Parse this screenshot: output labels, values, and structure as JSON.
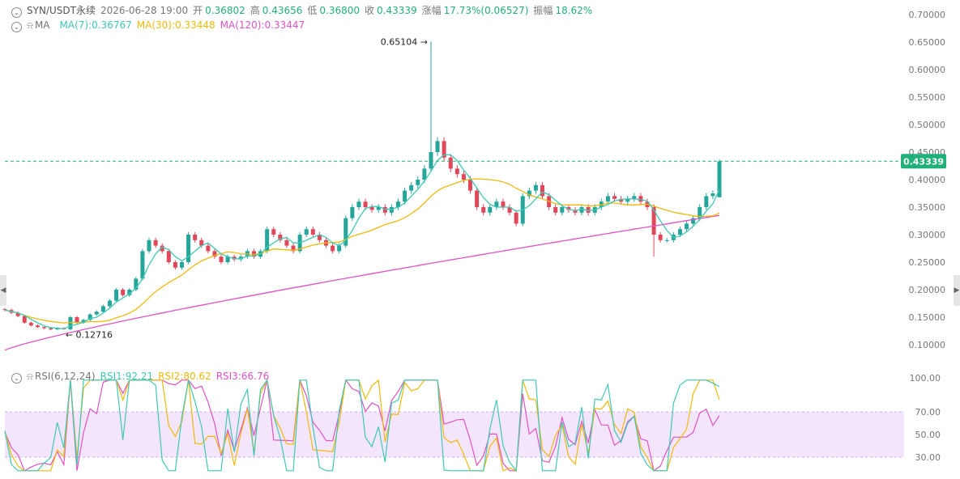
{
  "header": {
    "symbol": "SYN/USDT永续",
    "time": "2026-06-28 19:00",
    "open_label": "开",
    "open": "0.36802",
    "high_label": "高",
    "high": "0.43656",
    "low_label": "低",
    "low": "0.36800",
    "close_label": "收",
    "close": "0.43339",
    "change_label": "涨幅",
    "change": "17.73%(0.06527)",
    "amplitude_label": "振幅",
    "amplitude": "18.62%"
  },
  "ma_legend": {
    "title": "MA",
    "ma7": "MA(7):0.36767",
    "ma30": "MA(30):0.33448",
    "ma120": "MA(120):0.33447"
  },
  "rsi_legend": {
    "title": "RSI(6,12,24)",
    "rsi1": "RSI1:92.21",
    "rsi2": "RSI2:80.62",
    "rsi3": "RSI3:66.76"
  },
  "price_axis": [
    "0.70000",
    "0.65000",
    "0.60000",
    "0.55000",
    "0.50000",
    "0.45000",
    "0.40000",
    "0.35000",
    "0.30000",
    "0.25000",
    "0.20000",
    "0.15000",
    "0.10000"
  ],
  "rsi_axis": [
    "100.00",
    "70.00",
    "50.00",
    "30.00"
  ],
  "current_price_tag": "0.43339",
  "annotations": {
    "high_marker": "0.65104",
    "low_marker": "0.12716"
  },
  "colors": {
    "up": "#26a69a",
    "down": "#e0475a",
    "ma7": "#3fc9b5",
    "ma30": "#f0b90b",
    "ma120": "#e052c6",
    "rsi1": "#3fc9b5",
    "rsi2": "#f0b90b",
    "rsi3": "#e052c6",
    "rsi_band": "#f3e6fc",
    "tag_bg": "#21b07c"
  },
  "chart_data": {
    "type": "candlestick",
    "price_range": [
      0.07,
      0.72
    ],
    "rsi_range": [
      25,
      105
    ],
    "rsi_band": [
      30,
      70
    ],
    "series": [
      {
        "name": "MA(7)",
        "value": 0.36767
      },
      {
        "name": "MA(30)",
        "value": 0.33448
      },
      {
        "name": "MA(120)",
        "value": 0.33447
      },
      {
        "name": "RSI1",
        "value": 92.21
      },
      {
        "name": "RSI2",
        "value": 80.62
      },
      {
        "name": "RSI3",
        "value": 66.76
      }
    ],
    "close_path": [
      0.163,
      0.158,
      0.152,
      0.14,
      0.135,
      0.132,
      0.13,
      0.128,
      0.13,
      0.128,
      0.15,
      0.14,
      0.145,
      0.155,
      0.16,
      0.17,
      0.18,
      0.2,
      0.19,
      0.2,
      0.22,
      0.27,
      0.29,
      0.28,
      0.27,
      0.25,
      0.24,
      0.25,
      0.3,
      0.29,
      0.28,
      0.27,
      0.26,
      0.25,
      0.26,
      0.255,
      0.26,
      0.27,
      0.26,
      0.27,
      0.31,
      0.3,
      0.29,
      0.28,
      0.27,
      0.3,
      0.31,
      0.3,
      0.29,
      0.28,
      0.27,
      0.28,
      0.33,
      0.35,
      0.36,
      0.35,
      0.345,
      0.35,
      0.34,
      0.35,
      0.36,
      0.38,
      0.39,
      0.4,
      0.42,
      0.45,
      0.47,
      0.44,
      0.42,
      0.41,
      0.4,
      0.38,
      0.35,
      0.34,
      0.35,
      0.36,
      0.35,
      0.34,
      0.32,
      0.37,
      0.38,
      0.39,
      0.37,
      0.35,
      0.34,
      0.35,
      0.345,
      0.34,
      0.35,
      0.34,
      0.35,
      0.36,
      0.37,
      0.365,
      0.36,
      0.365,
      0.37,
      0.36,
      0.35,
      0.3,
      0.29,
      0.29,
      0.3,
      0.31,
      0.32,
      0.33,
      0.35,
      0.37,
      0.375,
      0.433
    ],
    "extremes": {
      "high": 0.65104,
      "low": 0.12716
    }
  }
}
